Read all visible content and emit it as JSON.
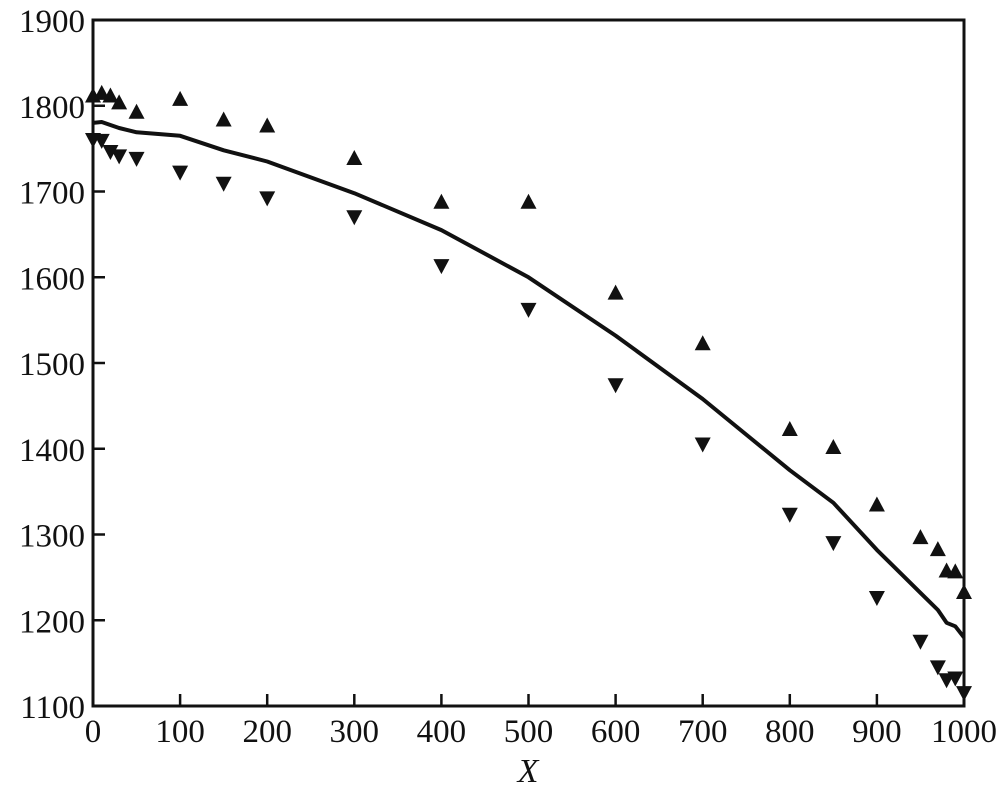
{
  "chart_data": {
    "type": "line",
    "title": "",
    "xlabel": "X",
    "ylabel": "",
    "xlim": [
      0,
      1000
    ],
    "ylim": [
      1100,
      1900
    ],
    "xticks": [
      0,
      100,
      200,
      300,
      400,
      500,
      600,
      700,
      800,
      900,
      1000
    ],
    "yticks": [
      1100,
      1200,
      1300,
      1400,
      1500,
      1600,
      1700,
      1800,
      1900
    ],
    "grid": false,
    "legend": "none",
    "series": [
      {
        "kind": "line",
        "color": "#111111",
        "x": [
          0,
          10,
          30,
          50,
          100,
          150,
          200,
          300,
          400,
          500,
          600,
          700,
          800,
          850,
          900,
          950,
          970,
          980,
          990,
          1000
        ],
        "y": [
          1780,
          1781,
          1774,
          1769,
          1765,
          1748,
          1735,
          1698,
          1655,
          1600,
          1532,
          1458,
          1375,
          1337,
          1282,
          1232,
          1212,
          1197,
          1193,
          1180
        ]
      },
      {
        "kind": "scatter",
        "marker": "triangle-up",
        "color": "#111111",
        "x": [
          0,
          10,
          20,
          30,
          50,
          100,
          150,
          200,
          300,
          400,
          500,
          600,
          700,
          800,
          850,
          900,
          950,
          970,
          980,
          990,
          1000
        ],
        "y": [
          1812,
          1815,
          1812,
          1804,
          1793,
          1808,
          1784,
          1777,
          1739,
          1688,
          1688,
          1582,
          1523,
          1423,
          1402,
          1335,
          1297,
          1283,
          1258,
          1257,
          1233
        ]
      },
      {
        "kind": "scatter",
        "marker": "triangle-down",
        "color": "#111111",
        "x": [
          0,
          10,
          20,
          30,
          50,
          100,
          150,
          200,
          300,
          400,
          500,
          600,
          700,
          800,
          850,
          900,
          950,
          970,
          980,
          990,
          1000
        ],
        "y": [
          1760,
          1759,
          1746,
          1741,
          1738,
          1722,
          1709,
          1692,
          1670,
          1613,
          1562,
          1474,
          1405,
          1323,
          1290,
          1226,
          1175,
          1145,
          1130,
          1132,
          1115
        ]
      }
    ]
  }
}
